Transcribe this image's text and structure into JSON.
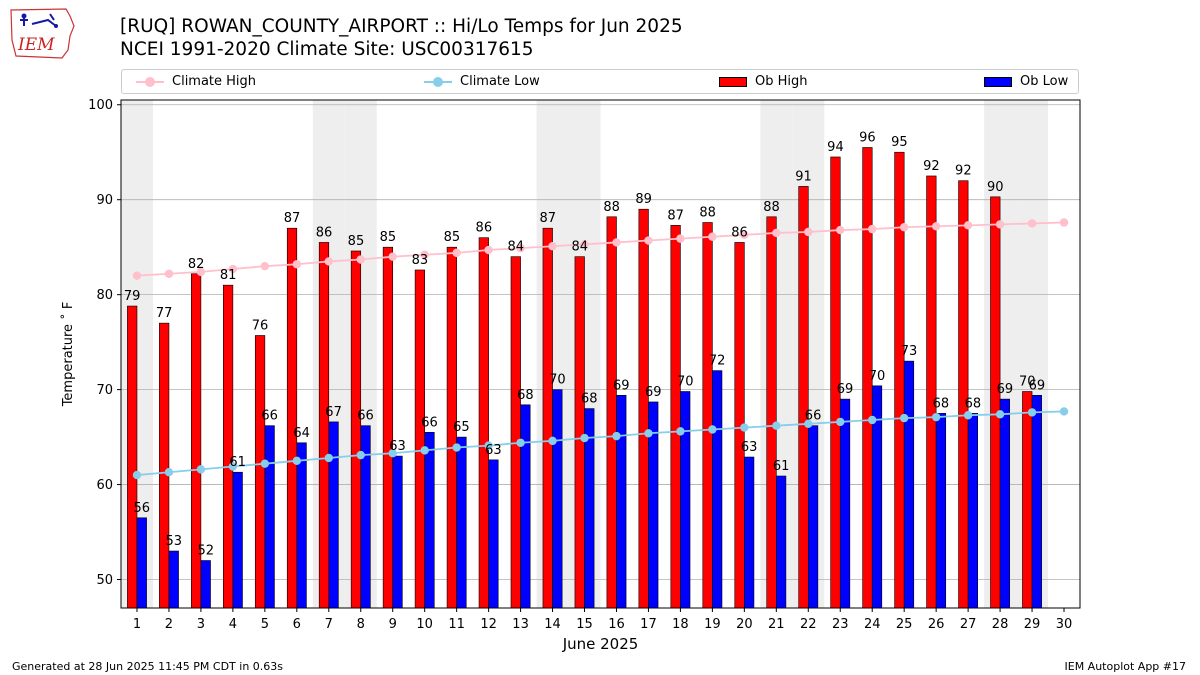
{
  "header": {
    "title": "[RUQ] ROWAN_COUNTY_AIRPORT :: Hi/Lo Temps for Jun 2025",
    "subtitle": "NCEI 1991-2020 Climate Site: USC00317615",
    "logo_text": "IEM"
  },
  "legend": {
    "climate_high": "Climate High",
    "climate_low": "Climate Low",
    "ob_high": "Ob High",
    "ob_low": "Ob Low"
  },
  "footer": {
    "generated": "Generated at 28 Jun 2025 11:45 PM CDT in 0.63s",
    "app": "IEM Autoplot App #17"
  },
  "colors": {
    "ob_high": "#ff0000",
    "ob_low": "#0000ff",
    "climate_high": "#ffc0cb",
    "climate_low": "#87ceeb",
    "weekend_shade": "#eeeeee",
    "grid": "#b0b0b0"
  },
  "chart_data": {
    "type": "bar",
    "xlabel": "June 2025",
    "ylabel": "Temperature ˚ F",
    "xlim": [
      0.5,
      30.5
    ],
    "ylim": [
      47,
      100.5
    ],
    "yticks": [
      50,
      60,
      70,
      80,
      90,
      100
    ],
    "grid": "horizontal",
    "legend_position": "top",
    "categories": [
      1,
      2,
      3,
      4,
      5,
      6,
      7,
      8,
      9,
      10,
      11,
      12,
      13,
      14,
      15,
      16,
      17,
      18,
      19,
      20,
      21,
      22,
      23,
      24,
      25,
      26,
      27,
      28,
      29,
      30
    ],
    "weekend_days": [
      1,
      7,
      8,
      14,
      15,
      21,
      22,
      28,
      29
    ],
    "series": [
      {
        "name": "Ob High",
        "kind": "bar",
        "values": [
          78.8,
          77,
          82.2,
          81,
          75.7,
          87,
          85.5,
          84.6,
          85,
          82.6,
          85,
          86,
          84,
          87,
          84,
          88.2,
          89,
          87.3,
          87.6,
          85.5,
          88.2,
          91.4,
          94.5,
          95.5,
          95,
          92.5,
          92,
          90.3,
          69.8,
          null
        ],
        "labels": [
          "79",
          "77",
          "82",
          "81",
          "76",
          "87",
          "86",
          "85",
          "85",
          "83",
          "85",
          "86",
          "84",
          "87",
          "84",
          "88",
          "89",
          "87",
          "88",
          "86",
          "88",
          "91",
          "94",
          "96",
          "95",
          "92",
          "92",
          "90",
          "70",
          null
        ]
      },
      {
        "name": "Ob Low",
        "kind": "bar",
        "values": [
          56.5,
          53,
          52,
          61.3,
          66.2,
          64.4,
          66.6,
          66.2,
          63,
          65.5,
          65,
          62.6,
          68.4,
          70,
          68,
          69.4,
          68.7,
          69.8,
          72,
          62.9,
          60.9,
          66.2,
          69,
          70.4,
          73,
          67.5,
          67.5,
          69,
          69.4,
          null
        ],
        "labels": [
          "56",
          "53",
          "52",
          "61",
          "66",
          "64",
          "67",
          "66",
          "63",
          "66",
          "65",
          "63",
          "68",
          "70",
          "68",
          "69",
          "69",
          "70",
          "72",
          "63",
          "61",
          "66",
          "69",
          "70",
          "73",
          "68",
          "68",
          "69",
          "69",
          null
        ]
      },
      {
        "name": "Climate High",
        "kind": "line",
        "values": [
          82,
          82.2,
          82.4,
          82.7,
          83,
          83.2,
          83.5,
          83.7,
          84,
          84.2,
          84.4,
          84.7,
          84.9,
          85.1,
          85.3,
          85.5,
          85.7,
          85.9,
          86.1,
          86.3,
          86.5,
          86.6,
          86.8,
          86.9,
          87.1,
          87.2,
          87.3,
          87.4,
          87.5,
          87.6
        ]
      },
      {
        "name": "Climate Low",
        "kind": "line",
        "values": [
          61,
          61.3,
          61.6,
          61.9,
          62.2,
          62.5,
          62.8,
          63.1,
          63.3,
          63.6,
          63.9,
          64.1,
          64.4,
          64.6,
          64.9,
          65.1,
          65.4,
          65.6,
          65.8,
          66,
          66.2,
          66.4,
          66.6,
          66.8,
          67,
          67.1,
          67.3,
          67.4,
          67.6,
          67.7
        ]
      }
    ]
  }
}
